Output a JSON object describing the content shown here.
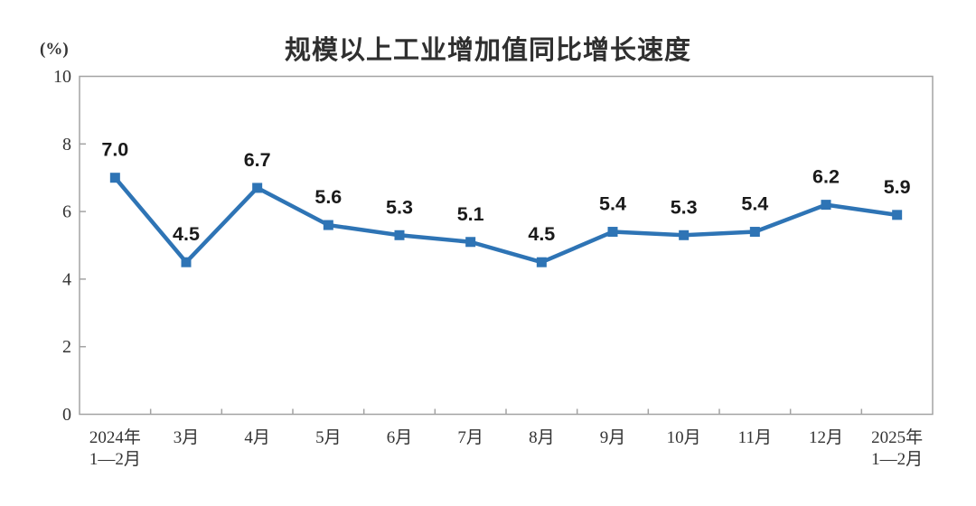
{
  "chart_data": {
    "type": "line",
    "title": "规模以上工业增加值同比增长速度",
    "ylabel": "(%)",
    "xlabel": "",
    "categories": [
      "2024年\n1—2月",
      "3月",
      "4月",
      "5月",
      "6月",
      "7月",
      "8月",
      "9月",
      "10月",
      "11月",
      "12月",
      "2025年\n1—2月"
    ],
    "values": [
      7.0,
      4.5,
      6.7,
      5.6,
      5.3,
      5.1,
      4.5,
      5.4,
      5.3,
      5.4,
      6.2,
      5.9
    ],
    "data_labels": [
      "7.0",
      "4.5",
      "6.7",
      "5.6",
      "5.3",
      "5.1",
      "4.5",
      "5.4",
      "5.3",
      "5.4",
      "6.2",
      "5.9"
    ],
    "ylim": [
      0,
      10
    ],
    "yticks": [
      0,
      2,
      4,
      6,
      8,
      10
    ],
    "grid": false,
    "legend": "none",
    "marker": "square",
    "line_color": "#2E74B5",
    "axis_color": "#a3a3a3",
    "label_color": "#1a1a1a",
    "tick_color": "#333333"
  }
}
